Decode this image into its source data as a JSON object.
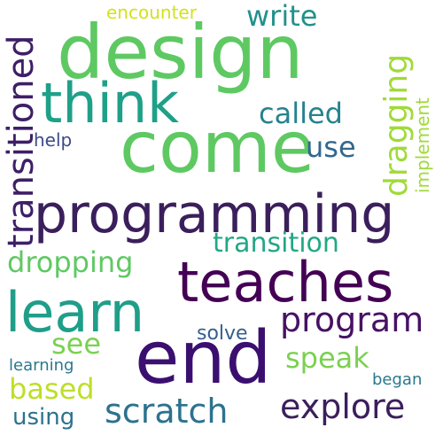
{
  "words": [
    {
      "text": "design",
      "color": "#5ec962"
    },
    {
      "text": "come",
      "color": "#5ec962"
    },
    {
      "text": "programming",
      "color": "#3b1f5c"
    },
    {
      "text": "think",
      "color": "#1fa088"
    },
    {
      "text": "teaches",
      "color": "#440154"
    },
    {
      "text": "end",
      "color": "#3b0f70"
    },
    {
      "text": "learn",
      "color": "#1f9e89"
    },
    {
      "text": "program",
      "color": "#471164"
    },
    {
      "text": "scratch",
      "color": "#2c728e"
    },
    {
      "text": "explore",
      "color": "#3b1f5c"
    },
    {
      "text": "dropping",
      "color": "#5ec962"
    },
    {
      "text": "transition",
      "color": "#22a884"
    },
    {
      "text": "called",
      "color": "#26828e"
    },
    {
      "text": "write",
      "color": "#21918c"
    },
    {
      "text": "use",
      "color": "#31688e"
    },
    {
      "text": "speak",
      "color": "#7ad151"
    },
    {
      "text": "based",
      "color": "#bddf26"
    },
    {
      "text": "see",
      "color": "#7ad151"
    },
    {
      "text": "using",
      "color": "#2c728e"
    },
    {
      "text": "solve",
      "color": "#355f8d"
    },
    {
      "text": "encounter",
      "color": "#d2e21b"
    },
    {
      "text": "help",
      "color": "#3e4a89"
    },
    {
      "text": "learning",
      "color": "#2a788e"
    },
    {
      "text": "began",
      "color": "#2a788e"
    },
    {
      "text": "transitioned",
      "color": "#3e1f66"
    },
    {
      "text": "dragging",
      "color": "#a0da39"
    },
    {
      "text": "implement",
      "color": "#a0da39"
    }
  ]
}
